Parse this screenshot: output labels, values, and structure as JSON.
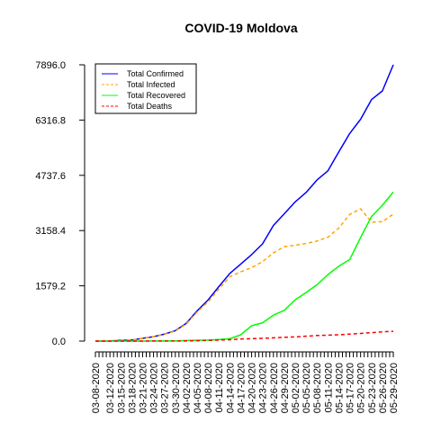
{
  "chart_data": {
    "type": "line",
    "title": "COVID-19 Moldova",
    "xlabel": "",
    "ylabel": "",
    "ylim": [
      0,
      7896
    ],
    "y_ticks": [
      "0.0",
      "1579.2",
      "3158.4",
      "4737.6",
      "6316.8",
      "7896.0"
    ],
    "x_tick_labels": [
      "03-08-2020",
      "03-12-2020",
      "03-15-2020",
      "03-18-2020",
      "03-21-2020",
      "03-24-2020",
      "03-27-2020",
      "03-30-2020",
      "04-02-2020",
      "04-05-2020",
      "04-08-2020",
      "04-11-2020",
      "04-14-2020",
      "04-17-2020",
      "04-20-2020",
      "04-23-2020",
      "04-26-2020",
      "04-29-2020",
      "05-02-2020",
      "05-05-2020",
      "05-08-2020",
      "05-11-2020",
      "05-14-2020",
      "05-17-2020",
      "05-20-2020",
      "05-23-2020",
      "05-26-2020",
      "05-29-2020"
    ],
    "x_start": "2020-03-08",
    "x_end": "2020-05-29",
    "grid": false,
    "legend_position": "top-left",
    "series": [
      {
        "name": "Total Confirmed",
        "color": "#0000ff",
        "dash": false,
        "points": [
          [
            "2020-03-08",
            1
          ],
          [
            "2020-03-12",
            3
          ],
          [
            "2020-03-15",
            23
          ],
          [
            "2020-03-18",
            30
          ],
          [
            "2020-03-21",
            80
          ],
          [
            "2020-03-24",
            125
          ],
          [
            "2020-03-27",
            199
          ],
          [
            "2020-03-30",
            298
          ],
          [
            "2020-04-02",
            505
          ],
          [
            "2020-04-05",
            864
          ],
          [
            "2020-04-08",
            1174
          ],
          [
            "2020-04-11",
            1560
          ],
          [
            "2020-04-14",
            1934
          ],
          [
            "2020-04-17",
            2200
          ],
          [
            "2020-04-20",
            2472
          ],
          [
            "2020-04-23",
            2778
          ],
          [
            "2020-04-26",
            3304
          ],
          [
            "2020-04-29",
            3638
          ],
          [
            "2020-05-02",
            3980
          ],
          [
            "2020-05-05",
            4248
          ],
          [
            "2020-05-08",
            4605
          ],
          [
            "2020-05-11",
            4867
          ],
          [
            "2020-05-14",
            5406
          ],
          [
            "2020-05-17",
            5934
          ],
          [
            "2020-05-20",
            6340
          ],
          [
            "2020-05-23",
            6900
          ],
          [
            "2020-05-26",
            7150
          ],
          [
            "2020-05-29",
            7896
          ]
        ]
      },
      {
        "name": "Total Infected",
        "color": "#ffa500",
        "dash": true,
        "points": [
          [
            "2020-03-08",
            1
          ],
          [
            "2020-03-12",
            3
          ],
          [
            "2020-03-15",
            23
          ],
          [
            "2020-03-18",
            29
          ],
          [
            "2020-03-21",
            78
          ],
          [
            "2020-03-24",
            122
          ],
          [
            "2020-03-27",
            193
          ],
          [
            "2020-03-30",
            288
          ],
          [
            "2020-04-02",
            485
          ],
          [
            "2020-04-05",
            830
          ],
          [
            "2020-04-08",
            1120
          ],
          [
            "2020-04-11",
            1490
          ],
          [
            "2020-04-14",
            1840
          ],
          [
            "2020-04-17",
            1980
          ],
          [
            "2020-04-20",
            2100
          ],
          [
            "2020-04-23",
            2270
          ],
          [
            "2020-04-26",
            2520
          ],
          [
            "2020-04-29",
            2700
          ],
          [
            "2020-05-02",
            2740
          ],
          [
            "2020-05-05",
            2790
          ],
          [
            "2020-05-08",
            2860
          ],
          [
            "2020-05-11",
            2970
          ],
          [
            "2020-05-14",
            3230
          ],
          [
            "2020-05-17",
            3620
          ],
          [
            "2020-05-20",
            3780
          ],
          [
            "2020-05-23",
            3400
          ],
          [
            "2020-05-26",
            3410
          ],
          [
            "2020-05-29",
            3630
          ]
        ]
      },
      {
        "name": "Total Recovered",
        "color": "#00ff00",
        "dash": false,
        "points": [
          [
            "2020-03-08",
            0
          ],
          [
            "2020-03-12",
            0
          ],
          [
            "2020-03-15",
            0
          ],
          [
            "2020-03-18",
            0
          ],
          [
            "2020-03-21",
            1
          ],
          [
            "2020-03-24",
            2
          ],
          [
            "2020-03-27",
            3
          ],
          [
            "2020-03-30",
            6
          ],
          [
            "2020-04-02",
            15
          ],
          [
            "2020-04-05",
            25
          ],
          [
            "2020-04-08",
            30
          ],
          [
            "2020-04-11",
            45
          ],
          [
            "2020-04-14",
            68
          ],
          [
            "2020-04-17",
            180
          ],
          [
            "2020-04-20",
            440
          ],
          [
            "2020-04-23",
            520
          ],
          [
            "2020-04-26",
            740
          ],
          [
            "2020-04-29",
            880
          ],
          [
            "2020-05-02",
            1180
          ],
          [
            "2020-05-05",
            1390
          ],
          [
            "2020-05-08",
            1610
          ],
          [
            "2020-05-11",
            1900
          ],
          [
            "2020-05-14",
            2140
          ],
          [
            "2020-05-17",
            2330
          ],
          [
            "2020-05-20",
            2960
          ],
          [
            "2020-05-23",
            3560
          ],
          [
            "2020-05-26",
            3880
          ],
          [
            "2020-05-29",
            4260
          ]
        ]
      },
      {
        "name": "Total Deaths",
        "color": "#ff0000",
        "dash": true,
        "points": [
          [
            "2020-03-08",
            0
          ],
          [
            "2020-03-12",
            0
          ],
          [
            "2020-03-15",
            0
          ],
          [
            "2020-03-18",
            1
          ],
          [
            "2020-03-21",
            1
          ],
          [
            "2020-03-24",
            2
          ],
          [
            "2020-03-27",
            3
          ],
          [
            "2020-03-30",
            4
          ],
          [
            "2020-04-02",
            5
          ],
          [
            "2020-04-05",
            10
          ],
          [
            "2020-04-08",
            20
          ],
          [
            "2020-04-11",
            30
          ],
          [
            "2020-04-14",
            40
          ],
          [
            "2020-04-17",
            60
          ],
          [
            "2020-04-20",
            70
          ],
          [
            "2020-04-23",
            80
          ],
          [
            "2020-04-26",
            93
          ],
          [
            "2020-04-29",
            110
          ],
          [
            "2020-05-02",
            120
          ],
          [
            "2020-05-05",
            140
          ],
          [
            "2020-05-08",
            160
          ],
          [
            "2020-05-11",
            170
          ],
          [
            "2020-05-14",
            180
          ],
          [
            "2020-05-17",
            200
          ],
          [
            "2020-05-20",
            220
          ],
          [
            "2020-05-23",
            240
          ],
          [
            "2020-05-26",
            265
          ],
          [
            "2020-05-29",
            281
          ]
        ]
      }
    ]
  }
}
